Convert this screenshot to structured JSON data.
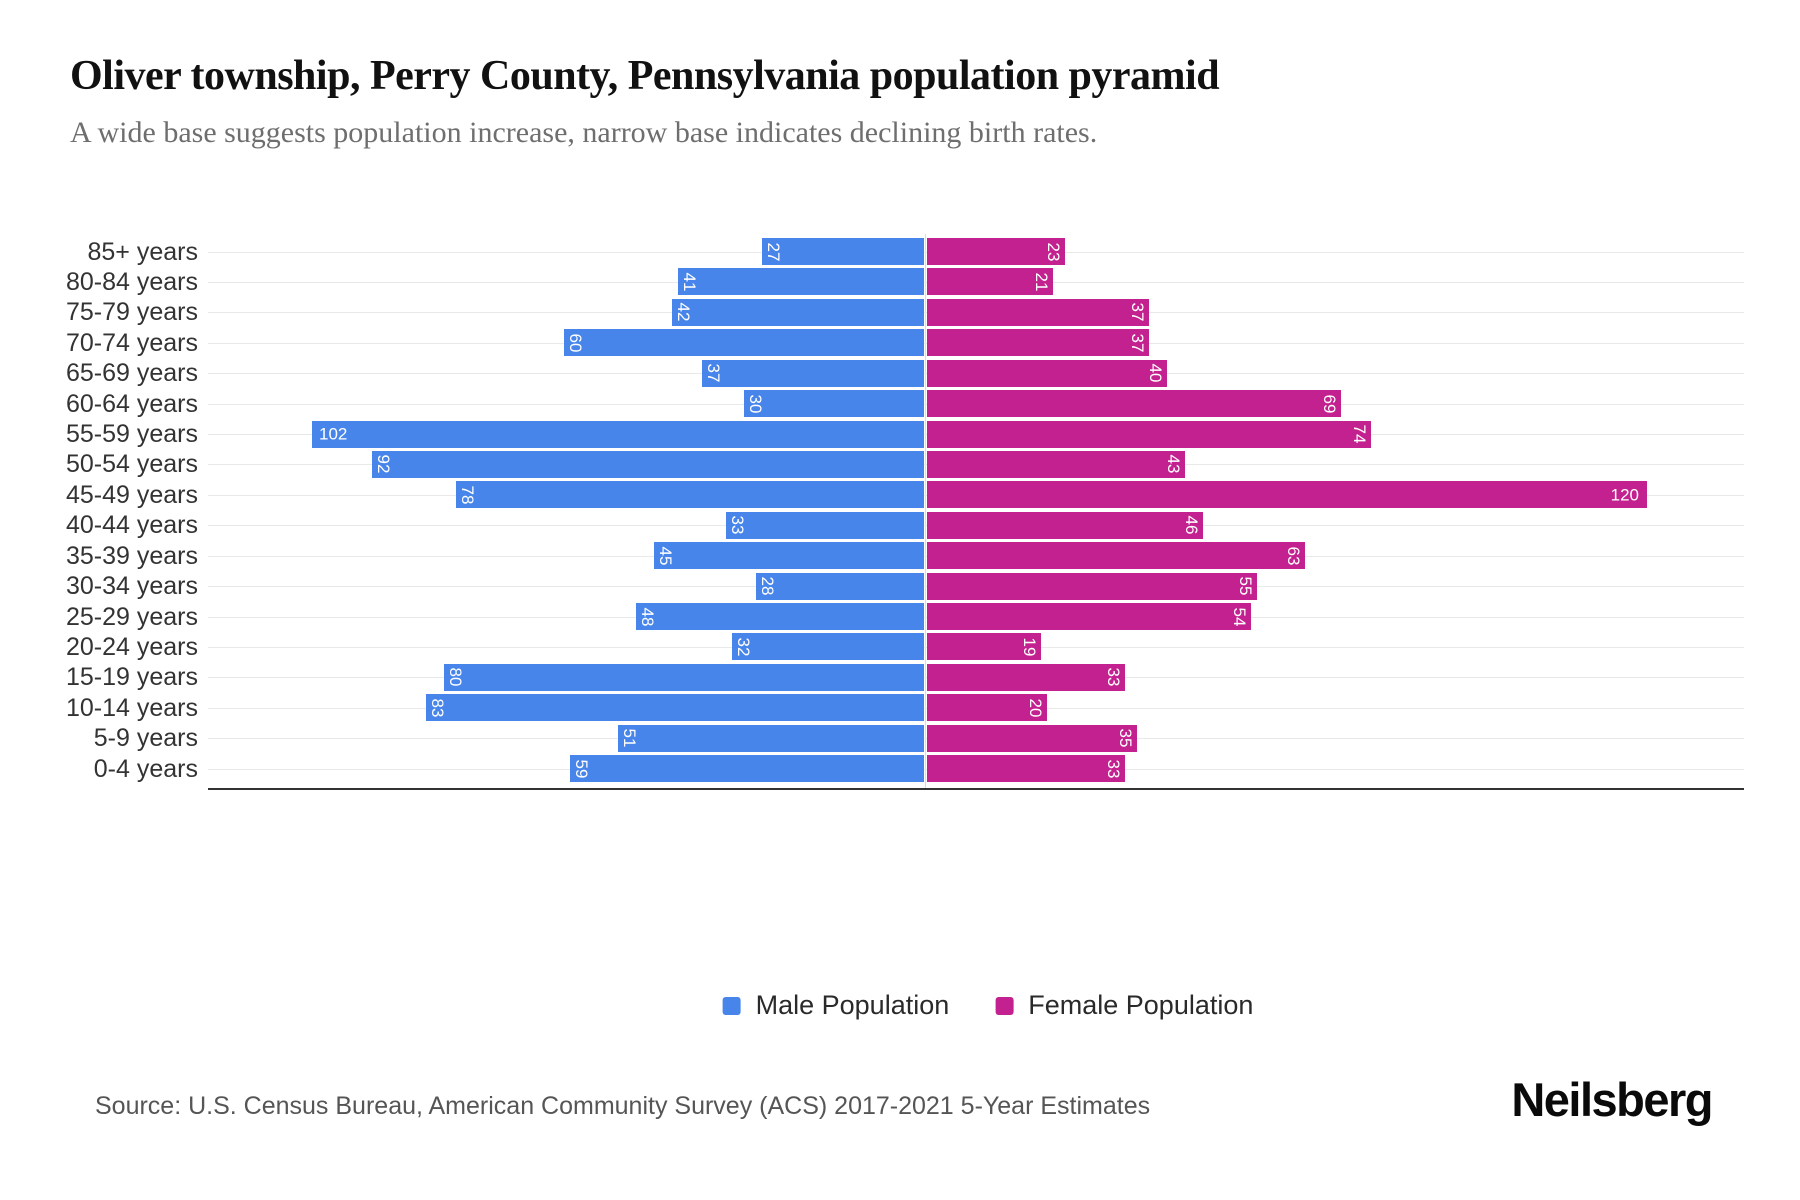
{
  "title": "Oliver township, Perry County, Pennsylvania population pyramid",
  "subtitle": "A wide base suggests population increase, narrow base indicates declining birth rates.",
  "legend": {
    "male": "Male Population",
    "female": "Female Population"
  },
  "source": "Source: U.S. Census Bureau, American Community Survey (ACS) 2017-2021 5-Year Estimates",
  "brand": "Neilsberg",
  "colors": {
    "male": "#4785EB",
    "female": "#C2218F",
    "gridline": "#e9e9e9",
    "baseline": "#333333",
    "value_label": "#ffffff"
  },
  "chart_data": {
    "type": "bar",
    "variant": "population-pyramid",
    "title": "Oliver township, Perry County, Pennsylvania population pyramid",
    "categories": [
      "85+ years",
      "80-84 years",
      "75-79 years",
      "70-74 years",
      "65-69 years",
      "60-64 years",
      "55-59 years",
      "50-54 years",
      "45-49 years",
      "40-44 years",
      "35-39 years",
      "30-34 years",
      "25-29 years",
      "20-24 years",
      "15-19 years",
      "10-14 years",
      "5-9 years",
      "0-4 years"
    ],
    "series": [
      {
        "name": "Male Population",
        "side": "left",
        "color": "#4785EB",
        "values": [
          27,
          41,
          42,
          60,
          37,
          30,
          102,
          92,
          78,
          33,
          45,
          28,
          48,
          32,
          80,
          83,
          51,
          59
        ]
      },
      {
        "name": "Female Population",
        "side": "right",
        "color": "#C2218F",
        "values": [
          23,
          21,
          37,
          37,
          40,
          69,
          74,
          43,
          120,
          46,
          63,
          55,
          54,
          19,
          33,
          20,
          35,
          33
        ]
      }
    ],
    "value_labels": "inside-end, rotated 90deg when 2 digits, horizontal when 3 digits",
    "grid": true,
    "legend_position": "bottom",
    "x_axis": {
      "zero_center": true,
      "male_max_shown": 102,
      "female_max_shown": 120
    }
  }
}
